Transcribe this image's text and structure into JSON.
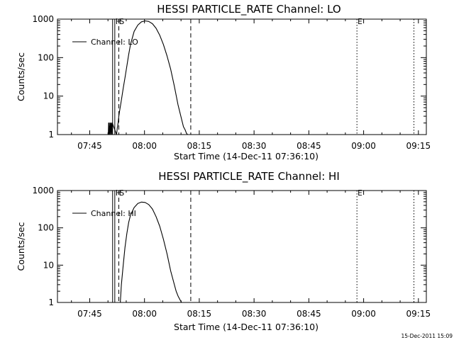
{
  "chart_data": [
    {
      "type": "line",
      "title": "HESSI PARTICLE_RATE Channel: LO",
      "xlabel": "Start Time (14-Dec-11 07:36:10)",
      "ylabel": "Counts/sec",
      "yscale": "log",
      "ylim": [
        1,
        1000
      ],
      "y_ticks": [
        1,
        10,
        100,
        1000
      ],
      "y_tick_labels": [
        "1",
        "10",
        "100",
        "1000"
      ],
      "xlim_minutes_after_start": [
        0,
        101
      ],
      "x_ticks": [
        {
          "minutes": 8.83,
          "label": "07:45"
        },
        {
          "minutes": 23.83,
          "label": "08:00"
        },
        {
          "minutes": 38.83,
          "label": "08:15"
        },
        {
          "minutes": 53.83,
          "label": "08:30"
        },
        {
          "minutes": 68.83,
          "label": "08:45"
        },
        {
          "minutes": 83.83,
          "label": "09:00"
        },
        {
          "minutes": 98.83,
          "label": "09:15"
        }
      ],
      "legend": {
        "label": "Channel: LO",
        "position": "top-left"
      },
      "markers": [
        {
          "minutes": 15.1,
          "style": "solid",
          "label": ""
        },
        {
          "minutes": 15.7,
          "style": "solid",
          "label": "H"
        },
        {
          "minutes": 16.8,
          "style": "dashed",
          "label": "S"
        },
        {
          "minutes": 36.5,
          "style": "dashed",
          "label": ""
        },
        {
          "minutes": 82.0,
          "style": "dotted",
          "label": "E"
        },
        {
          "minutes": 97.6,
          "style": "dotted",
          "label": ""
        }
      ],
      "series": [
        {
          "name": "Channel: LO",
          "x": [
            13.9,
            14.0,
            14.1,
            14.2,
            14.35,
            14.5,
            14.6,
            14.75,
            14.9,
            15.0,
            16.2,
            16.4,
            16.6,
            16.8,
            17.0,
            17.3,
            17.6,
            18.0,
            18.5,
            19.0,
            19.5,
            20.0,
            21.0,
            22.0,
            23.0,
            24.0,
            25.0,
            26.0,
            27.0,
            28.0,
            29.0,
            30.0,
            31.0,
            32.0,
            33.0,
            34.0,
            34.5,
            35.0,
            35.3,
            35.6
          ],
          "y": [
            1,
            2,
            1,
            2,
            1,
            2,
            1,
            2,
            1,
            2,
            1,
            1.5,
            2,
            3,
            4,
            6,
            9,
            16,
            30,
            60,
            120,
            220,
            480,
            700,
            850,
            900,
            870,
            760,
            580,
            380,
            220,
            110,
            50,
            18,
            6,
            2.5,
            1.6,
            1.3,
            1.1,
            1
          ]
        }
      ]
    },
    {
      "type": "line",
      "title": "HESSI PARTICLE_RATE Channel: HI",
      "xlabel": "Start Time (14-Dec-11 07:36:10)",
      "ylabel": "Counts/sec",
      "yscale": "log",
      "ylim": [
        1,
        1000
      ],
      "y_ticks": [
        1,
        10,
        100,
        1000
      ],
      "y_tick_labels": [
        "1",
        "10",
        "100",
        "1000"
      ],
      "xlim_minutes_after_start": [
        0,
        101
      ],
      "x_ticks": [
        {
          "minutes": 8.83,
          "label": "07:45"
        },
        {
          "minutes": 23.83,
          "label": "08:00"
        },
        {
          "minutes": 38.83,
          "label": "08:15"
        },
        {
          "minutes": 53.83,
          "label": "08:30"
        },
        {
          "minutes": 68.83,
          "label": "08:45"
        },
        {
          "minutes": 83.83,
          "label": "09:00"
        },
        {
          "minutes": 98.83,
          "label": "09:15"
        }
      ],
      "legend": {
        "label": "Channel: HI",
        "position": "top-left"
      },
      "markers": [
        {
          "minutes": 15.1,
          "style": "solid",
          "label": ""
        },
        {
          "minutes": 15.7,
          "style": "solid",
          "label": "H"
        },
        {
          "minutes": 16.8,
          "style": "dashed",
          "label": "S"
        },
        {
          "minutes": 36.5,
          "style": "dashed",
          "label": ""
        },
        {
          "minutes": 82.0,
          "style": "dotted",
          "label": "E"
        },
        {
          "minutes": 97.6,
          "style": "dotted",
          "label": ""
        }
      ],
      "series": [
        {
          "name": "Channel: HI",
          "x": [
            17.2,
            17.5,
            18.0,
            18.5,
            19.0,
            19.5,
            20.0,
            21.0,
            22.0,
            23.0,
            24.0,
            25.0,
            26.0,
            27.0,
            28.0,
            29.0,
            30.0,
            31.0,
            32.0,
            32.5,
            33.0,
            33.5,
            34.0
          ],
          "y": [
            1,
            3,
            10,
            30,
            70,
            140,
            220,
            350,
            450,
            490,
            480,
            420,
            320,
            200,
            110,
            50,
            20,
            7,
            3,
            2,
            1.5,
            1.2,
            1
          ]
        }
      ]
    }
  ],
  "footer": {
    "timestamp": "15-Dec-2011 15:09"
  }
}
